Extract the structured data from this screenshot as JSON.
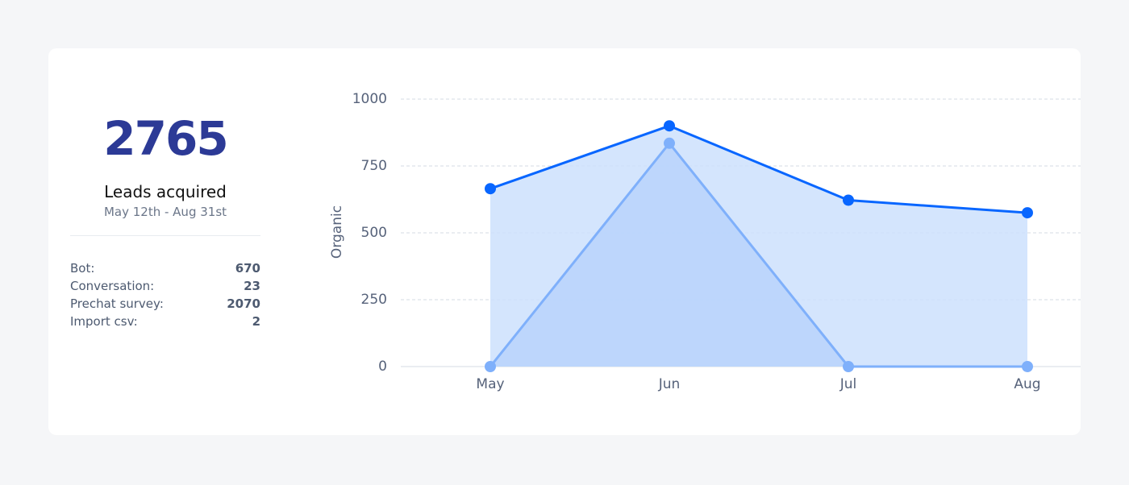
{
  "summary": {
    "total": 2765,
    "label": "Leads acquired",
    "date_range": "May 12th - Aug 31st",
    "rows": [
      {
        "label": "Bot:",
        "value": 670
      },
      {
        "label": "Conversation:",
        "value": 23
      },
      {
        "label": "Prechat survey:",
        "value": 2070
      },
      {
        "label": "Import csv:",
        "value": 2
      }
    ]
  },
  "chart_data": {
    "type": "area",
    "y_label": "Organic",
    "categories": [
      "May",
      "Jun",
      "Jul",
      "Aug"
    ],
    "series": [
      {
        "color": "#0866ff",
        "fill": "#cde0fd",
        "values": [
          665,
          900,
          622,
          575
        ]
      },
      {
        "color": "#7fb0fb",
        "fill": "#b9d3fb",
        "values": [
          0,
          835,
          0,
          0
        ]
      }
    ],
    "ylim": [
      0,
      1000
    ],
    "yticks": [
      0,
      250,
      500,
      750,
      1000
    ],
    "grid": true
  }
}
